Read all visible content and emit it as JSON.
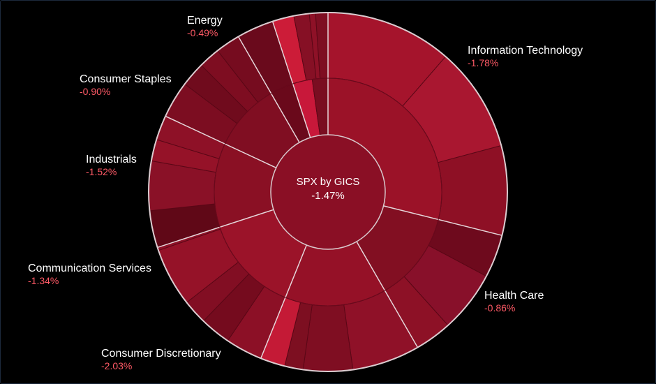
{
  "chart_data": {
    "type": "sunburst",
    "center": {
      "label": "SPX by GICS",
      "value": "-1.47%"
    },
    "sectors": [
      {
        "name": "Information Technology",
        "change": "-1.78%",
        "color": "#9b1228",
        "children": [
          {
            "color": "#a5142c"
          },
          {
            "color": "#a91730"
          },
          {
            "color": "#8e1025"
          }
        ]
      },
      {
        "name": "Health Care",
        "change": "-0.86%",
        "color": "#820f22",
        "children": [
          {
            "color": "#6e0a1d"
          },
          {
            "color": "#88102a"
          },
          {
            "color": "#8d1126"
          }
        ]
      },
      {
        "name": "Consumer Discretionary",
        "change": "-2.03%",
        "color": "#951127",
        "children": [
          {
            "color": "#8f1128"
          },
          {
            "color": "#7f0e22"
          },
          {
            "color": "#7d0f21"
          },
          {
            "color": "#c41a36"
          }
        ]
      },
      {
        "name": "Communication Services",
        "change": "-1.34%",
        "color": "#9b1329",
        "children": [
          {
            "color": "#8c1026"
          },
          {
            "color": "#750b1e"
          },
          {
            "color": "#820e23"
          },
          {
            "color": "#951228"
          },
          {
            "color": "#8e1127"
          }
        ]
      },
      {
        "name": "Industrials",
        "change": "-1.52%",
        "color": "#8a1024",
        "children": [
          {
            "color": "#600817"
          },
          {
            "color": "#8a1127"
          },
          {
            "color": "#951228"
          },
          {
            "color": "#8e1127"
          }
        ]
      },
      {
        "name": "Consumer Staples",
        "change": "-0.90%",
        "color": "#800e22",
        "children": [
          {
            "color": "#7c0d21"
          },
          {
            "color": "#700b1d"
          },
          {
            "color": "#7e0d21"
          },
          {
            "color": "#760c1f"
          }
        ]
      },
      {
        "name": "Energy",
        "change": "-0.49%",
        "color": "#6a091b",
        "children": [
          {
            "color": "#6a0a1c"
          }
        ]
      },
      {
        "name": "",
        "change": "",
        "color": "#b8162f",
        "children": [
          {
            "color": "#cc1c38"
          },
          {
            "color": "#861025"
          },
          {
            "color": "#8e1127"
          },
          {
            "color": "#7e0e22"
          }
        ]
      }
    ]
  }
}
